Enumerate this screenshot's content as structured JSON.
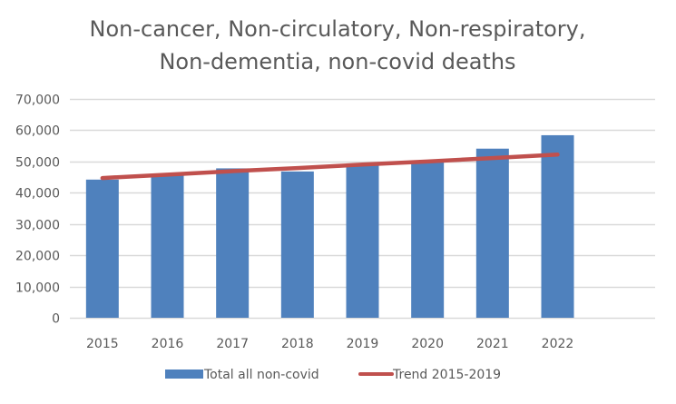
{
  "chart_data": {
    "type": "bar",
    "title": "Non-cancer, Non-circulatory, Non-respiratory, Non-dementia, non-covid deaths",
    "title_lines": [
      "Non-cancer, Non-circulatory, Non-respiratory,",
      "Non-dementia, non-covid deaths"
    ],
    "xlabel": "",
    "ylabel": "",
    "categories": [
      "2015",
      "2016",
      "2017",
      "2018",
      "2019",
      "2020",
      "2021",
      "2022"
    ],
    "ylim": [
      0,
      70000
    ],
    "yticks": [
      0,
      10000,
      20000,
      30000,
      40000,
      50000,
      60000,
      70000
    ],
    "ytick_labels": [
      "0",
      "10,000",
      "20,000",
      "30,000",
      "40,000",
      "50,000",
      "60,000",
      "70,000"
    ],
    "grid": true,
    "legend_position": "bottom",
    "series": [
      {
        "name": "Total all non-covid",
        "kind": "bar",
        "color": "#4F81BD",
        "values": [
          44200,
          45600,
          47800,
          46800,
          49000,
          50200,
          54100,
          58400
        ]
      },
      {
        "name": "Trend 2015-2019",
        "kind": "line",
        "color": "#C0504D",
        "values": [
          44700,
          45800,
          46900,
          47900,
          49000,
          50000,
          51100,
          52200
        ]
      }
    ]
  }
}
